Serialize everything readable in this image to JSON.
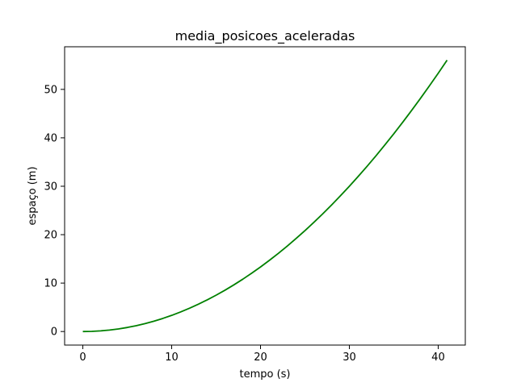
{
  "chart_data": {
    "type": "line",
    "title": "media_posicoes_aceleradas",
    "xlabel": "tempo (s)",
    "ylabel": "espaço (m)",
    "xlim": [
      -2.05,
      43.05
    ],
    "ylim": [
      -2.8,
      58.8
    ],
    "xticks": [
      0,
      10,
      20,
      30,
      40
    ],
    "yticks": [
      0,
      10,
      20,
      30,
      40,
      50
    ],
    "grid": false,
    "series": [
      {
        "color": "#008000",
        "x": [
          0,
          1,
          2,
          3,
          4,
          5,
          6,
          7,
          8,
          9,
          10,
          11,
          12,
          13,
          14,
          15,
          16,
          17,
          18,
          19,
          20,
          21,
          22,
          23,
          24,
          25,
          26,
          27,
          28,
          29,
          30,
          31,
          32,
          33,
          34,
          35,
          36,
          37,
          38,
          39,
          40,
          41
        ],
        "y": [
          0,
          0.033,
          0.133,
          0.3,
          0.533,
          0.833,
          1.2,
          1.633,
          2.133,
          2.7,
          3.333,
          4.033,
          4.8,
          5.633,
          6.533,
          7.5,
          8.533,
          9.633,
          10.8,
          12.033,
          13.333,
          14.7,
          16.133,
          17.633,
          19.2,
          20.833,
          22.533,
          24.3,
          26.133,
          28.033,
          30.0,
          32.033,
          34.133,
          36.3,
          38.533,
          40.833,
          43.2,
          45.633,
          48.133,
          50.7,
          53.333,
          56.033
        ]
      }
    ]
  }
}
